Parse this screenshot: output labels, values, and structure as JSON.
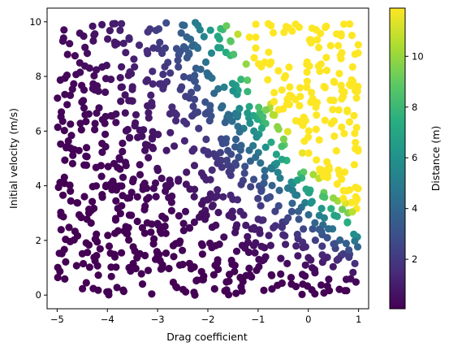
{
  "chart_data": {
    "type": "scatter",
    "title": "",
    "xlabel": "Drag coefficient",
    "ylabel": "Initial velocity (m/s)",
    "xlim": [
      -5.2,
      1.2
    ],
    "ylim": [
      -0.5,
      10.5
    ],
    "xticks": [
      -5,
      -4,
      -3,
      -2,
      -1,
      0,
      1
    ],
    "xtick_labels": [
      "−5",
      "−4",
      "−3",
      "−2",
      "−1",
      "0",
      "1"
    ],
    "yticks": [
      0,
      2,
      4,
      6,
      8,
      10
    ],
    "ytick_labels": [
      "0",
      "2",
      "4",
      "6",
      "8",
      "10"
    ],
    "grid": false,
    "colormap": "viridis",
    "point_count": 1000,
    "value_relationship": "distance ≈ velocity² × exp(drag) / (2 × 9.81), shown as colour",
    "colorbar": {
      "label": "Distance (m)",
      "range": [
        0.05,
        11.9
      ],
      "ticks": [
        2,
        4,
        6,
        8,
        10
      ],
      "tick_labels": [
        "2",
        "4",
        "6",
        "8",
        "10"
      ]
    },
    "marker_color_range": [
      "#440154",
      "#fde725"
    ]
  }
}
